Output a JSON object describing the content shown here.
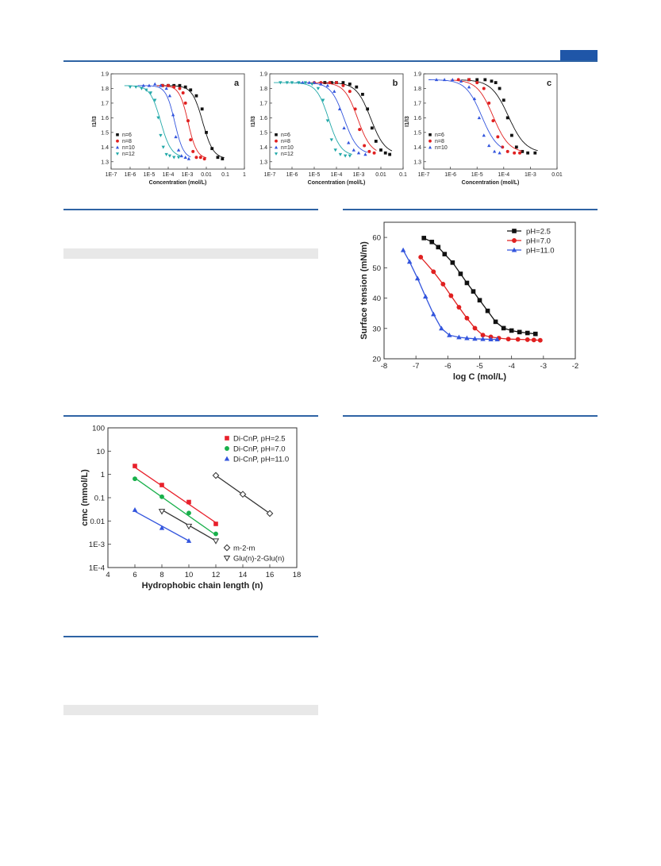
{
  "chart_data": [
    {
      "type": "scatter",
      "panel_label": "a",
      "xscale": "log",
      "xlabel": "Concentration (mol/L)",
      "ylabel": "I1/I3",
      "xlim": [
        1e-07,
        1
      ],
      "ylim": [
        1.25,
        1.9
      ],
      "xticks": [
        "1E-7",
        "1E-6",
        "1E-5",
        "1E-4",
        "1E-3",
        "0.01",
        "0.1",
        "1"
      ],
      "yticks": [
        "1.3",
        "1.4",
        "1.5",
        "1.6",
        "1.7",
        "1.8",
        "1.9"
      ],
      "legend_position": "bottom-left",
      "series": [
        {
          "name": "n=6",
          "color": "#111111",
          "marker": "square",
          "top": 1.82,
          "bottom": 1.32,
          "mid": 0.0065,
          "width": 0.12,
          "x": [
            5e-05,
            0.0001,
            0.0002,
            0.0004,
            0.0008,
            0.0015,
            0.003,
            0.006,
            0.01,
            0.02,
            0.04,
            0.07
          ],
          "y": [
            1.82,
            1.82,
            1.82,
            1.82,
            1.81,
            1.79,
            1.75,
            1.66,
            1.5,
            1.39,
            1.33,
            1.32
          ]
        },
        {
          "name": "n=8",
          "color": "#e02020",
          "marker": "circle",
          "top": 1.82,
          "bottom": 1.32,
          "mid": 0.0011,
          "width": 0.1,
          "x": [
            5e-05,
            0.0001,
            0.0002,
            0.0004,
            0.0006,
            0.0008,
            0.0011,
            0.0015,
            0.002,
            0.003,
            0.005,
            0.008
          ],
          "y": [
            1.82,
            1.82,
            1.81,
            1.8,
            1.77,
            1.7,
            1.58,
            1.45,
            1.37,
            1.33,
            1.33,
            1.32
          ]
        },
        {
          "name": "n=10",
          "color": "#3355dd",
          "marker": "triangle-up",
          "top": 1.82,
          "bottom": 1.32,
          "mid": 0.00022,
          "width": 0.1,
          "x": [
            5e-06,
            1e-05,
            2e-05,
            4e-05,
            8e-05,
            0.00012,
            0.00018,
            0.00025,
            0.00035,
            0.0005,
            0.0008,
            0.0012
          ],
          "y": [
            1.82,
            1.82,
            1.83,
            1.82,
            1.8,
            1.75,
            1.62,
            1.47,
            1.38,
            1.34,
            1.33,
            1.32
          ]
        },
        {
          "name": "n=12",
          "color": "#21a8a8",
          "marker": "triangle-down",
          "top": 1.82,
          "bottom": 1.33,
          "mid": 4e-05,
          "width": 0.12,
          "x": [
            1e-06,
            2e-06,
            4e-06,
            7e-06,
            1.2e-05,
            2e-05,
            3e-05,
            4e-05,
            5.5e-05,
            8e-05,
            0.00012,
            0.0002,
            0.00035
          ],
          "y": [
            1.81,
            1.81,
            1.8,
            1.79,
            1.77,
            1.72,
            1.6,
            1.48,
            1.4,
            1.35,
            1.34,
            1.33,
            1.33
          ]
        }
      ]
    },
    {
      "type": "scatter",
      "panel_label": "b",
      "xscale": "log",
      "xlabel": "Concentration (mol/L)",
      "ylabel": "I1/I3",
      "xlim": [
        1e-07,
        0.1
      ],
      "ylim": [
        1.25,
        1.9
      ],
      "xticks": [
        "1E-7",
        "1E-6",
        "1E-5",
        "1E-4",
        "1E-3",
        "0.01",
        "0.1"
      ],
      "yticks": [
        "1.3",
        "1.4",
        "1.5",
        "1.6",
        "1.7",
        "1.8",
        "1.9"
      ],
      "legend_position": "bottom-left",
      "series": [
        {
          "name": "n=6",
          "color": "#111111",
          "marker": "square",
          "top": 1.84,
          "bottom": 1.35,
          "mid": 0.0035,
          "width": 0.14,
          "x": [
            3e-05,
            6e-05,
            0.0001,
            0.0002,
            0.0004,
            0.0008,
            0.0015,
            0.0025,
            0.004,
            0.006,
            0.01,
            0.016,
            0.025
          ],
          "y": [
            1.84,
            1.84,
            1.84,
            1.84,
            1.83,
            1.81,
            1.76,
            1.66,
            1.53,
            1.44,
            1.38,
            1.36,
            1.35
          ]
        },
        {
          "name": "n=8",
          "color": "#e02020",
          "marker": "circle",
          "top": 1.84,
          "bottom": 1.35,
          "mid": 0.0009,
          "width": 0.13,
          "x": [
            1e-05,
            2e-05,
            5e-05,
            0.0001,
            0.0002,
            0.0004,
            0.0007,
            0.0011,
            0.0018,
            0.003,
            0.005
          ],
          "y": [
            1.84,
            1.84,
            1.84,
            1.84,
            1.82,
            1.78,
            1.66,
            1.52,
            1.41,
            1.37,
            1.36
          ]
        },
        {
          "name": "n=10",
          "color": "#3355dd",
          "marker": "triangle-up",
          "top": 1.84,
          "bottom": 1.35,
          "mid": 0.00022,
          "width": 0.13,
          "x": [
            3e-06,
            6e-06,
            1e-05,
            2e-05,
            4e-05,
            8e-05,
            0.00014,
            0.00022,
            0.00035,
            0.0006,
            0.001,
            0.002
          ],
          "y": [
            1.84,
            1.84,
            1.84,
            1.83,
            1.82,
            1.78,
            1.66,
            1.53,
            1.43,
            1.38,
            1.36,
            1.35
          ]
        },
        {
          "name": "n=12",
          "color": "#21a8a8",
          "marker": "triangle-down",
          "top": 1.84,
          "bottom": 1.34,
          "mid": 4.5e-05,
          "width": 0.12,
          "x": [
            3e-07,
            6e-07,
            1e-06,
            2e-06,
            4e-06,
            8e-06,
            1.5e-05,
            2.5e-05,
            4e-05,
            6e-05,
            9e-05,
            0.00015,
            0.00025,
            0.0004
          ],
          "y": [
            1.84,
            1.84,
            1.84,
            1.84,
            1.84,
            1.83,
            1.8,
            1.72,
            1.58,
            1.45,
            1.38,
            1.35,
            1.34,
            1.34
          ]
        }
      ]
    },
    {
      "type": "scatter",
      "panel_label": "c",
      "xscale": "log",
      "xlabel": "Concentration (mol/L)",
      "ylabel": "I1/I3",
      "xlim": [
        1e-07,
        0.01
      ],
      "ylim": [
        1.25,
        1.9
      ],
      "xticks": [
        "1E-7",
        "1E-6",
        "1E-5",
        "1E-4",
        "1E-3",
        "0.01"
      ],
      "yticks": [
        "1.3",
        "1.4",
        "1.5",
        "1.6",
        "1.7",
        "1.8",
        "1.9"
      ],
      "legend_position": "bottom-left",
      "series": [
        {
          "name": "n=6",
          "color": "#111111",
          "marker": "square",
          "top": 1.86,
          "bottom": 1.36,
          "mid": 0.00015,
          "width": 0.14,
          "x": [
            5e-06,
            1e-05,
            2e-05,
            3.5e-05,
            5e-05,
            7e-05,
            0.0001,
            0.00014,
            0.0002,
            0.0003,
            0.0005,
            0.0008,
            0.0015
          ],
          "y": [
            1.86,
            1.86,
            1.86,
            1.85,
            1.84,
            1.8,
            1.72,
            1.6,
            1.48,
            1.4,
            1.37,
            1.36,
            1.36
          ]
        },
        {
          "name": "n=8",
          "color": "#e02020",
          "marker": "circle",
          "top": 1.86,
          "bottom": 1.36,
          "mid": 4e-05,
          "width": 0.13,
          "x": [
            2e-06,
            5e-06,
            1e-05,
            1.8e-05,
            2.8e-05,
            4e-05,
            6e-05,
            9e-05,
            0.00014,
            0.00025,
            0.0004
          ],
          "y": [
            1.86,
            1.86,
            1.84,
            1.8,
            1.7,
            1.58,
            1.47,
            1.4,
            1.37,
            1.36,
            1.36
          ]
        },
        {
          "name": "n=10",
          "color": "#3355dd",
          "marker": "triangle-up",
          "top": 1.86,
          "bottom": 1.36,
          "mid": 1.5e-05,
          "width": 0.13,
          "x": [
            3e-07,
            6e-07,
            1.2e-06,
            2.5e-06,
            5e-06,
            8e-06,
            1.2e-05,
            1.8e-05,
            2.8e-05,
            4.5e-05,
            7e-05
          ],
          "y": [
            1.86,
            1.86,
            1.86,
            1.85,
            1.81,
            1.73,
            1.6,
            1.48,
            1.41,
            1.37,
            1.36
          ]
        }
      ]
    },
    {
      "type": "line",
      "xlabel": "log C (mol/L)",
      "ylabel": "Surface tension (mN/m)",
      "xlim": [
        -8,
        -2
      ],
      "ylim": [
        20,
        65
      ],
      "xticks": [
        "-8",
        "-7",
        "-6",
        "-5",
        "-4",
        "-3",
        "-2"
      ],
      "yticks": [
        "20",
        "30",
        "40",
        "50",
        "60"
      ],
      "legend_position": "top-right",
      "series": [
        {
          "name": "pH=2.5",
          "color": "#111111",
          "marker": "square",
          "x": [
            -6.75,
            -6.5,
            -6.3,
            -6.1,
            -5.85,
            -5.6,
            -5.4,
            -5.2,
            -5.0,
            -4.75,
            -4.5,
            -4.25,
            -4.0,
            -3.75,
            -3.5,
            -3.25
          ],
          "y": [
            59.8,
            58.5,
            56.8,
            54.5,
            51.7,
            48.0,
            45.0,
            42.2,
            39.3,
            35.8,
            32.2,
            30.1,
            29.3,
            28.8,
            28.5,
            28.2
          ]
        },
        {
          "name": "pH=7.0",
          "color": "#e02020",
          "marker": "circle",
          "x": [
            -6.85,
            -6.45,
            -6.15,
            -5.9,
            -5.65,
            -5.4,
            -5.15,
            -4.9,
            -4.65,
            -4.4,
            -4.1,
            -3.8,
            -3.5,
            -3.3,
            -3.1
          ],
          "y": [
            53.5,
            48.7,
            44.6,
            40.8,
            37.0,
            33.4,
            30.1,
            27.8,
            27.2,
            26.8,
            26.5,
            26.4,
            26.3,
            26.2,
            26.1
          ]
        },
        {
          "name": "pH=11.0",
          "color": "#3355dd",
          "marker": "triangle-up",
          "x": [
            -7.4,
            -7.2,
            -6.95,
            -6.7,
            -6.45,
            -6.2,
            -5.95,
            -5.65,
            -5.4,
            -5.15,
            -4.9,
            -4.65,
            -4.45
          ],
          "y": [
            55.8,
            52.0,
            46.5,
            40.5,
            34.7,
            30.0,
            27.8,
            27.1,
            26.8,
            26.6,
            26.5,
            26.4,
            26.4
          ]
        }
      ]
    },
    {
      "type": "scatter",
      "yscale": "log",
      "xlabel": "Hydrophobic chain length (n)",
      "ylabel": "cmc (mmol/L)",
      "xlim": [
        4,
        18
      ],
      "ylim": [
        0.0001,
        100
      ],
      "xticks": [
        "4",
        "6",
        "8",
        "10",
        "12",
        "14",
        "16",
        "18"
      ],
      "yticks": [
        "1E-4",
        "1E-3",
        "0.01",
        "0.1",
        "1",
        "10",
        "100"
      ],
      "legend_position": "top-right",
      "series": [
        {
          "name": "Di-CnP, pH=2.5",
          "color": "#e8202b",
          "marker": "square",
          "line_color": "#e8202b",
          "x": [
            6,
            8,
            10,
            12
          ],
          "y": [
            2.3,
            0.35,
            0.065,
            0.0075
          ],
          "fit": [
            [
              6,
              2.0
            ],
            [
              12,
              0.0085
            ]
          ]
        },
        {
          "name": "Di-CnP, pH=7.0",
          "color": "#19b04b",
          "marker": "circle",
          "line_color": "#19b04b",
          "x": [
            6,
            8,
            10,
            12
          ],
          "y": [
            0.65,
            0.11,
            0.022,
            0.0028
          ],
          "fit": [
            [
              6,
              0.7
            ],
            [
              12,
              0.0025
            ]
          ]
        },
        {
          "name": "Di-CnP, pH=11.0",
          "color": "#3355dd",
          "marker": "triangle-up",
          "line_color": "#3355dd",
          "x": [
            6,
            8,
            10
          ],
          "y": [
            0.03,
            0.005,
            0.0014
          ],
          "fit": [
            [
              6,
              0.026
            ],
            [
              10,
              0.0014
            ]
          ]
        },
        {
          "name": "m-2-m",
          "color": "#333333",
          "marker": "diamond-open",
          "line_color": "#333333",
          "x": [
            12,
            14,
            16
          ],
          "y": [
            0.9,
            0.14,
            0.021
          ],
          "fit": [
            [
              12,
              0.9
            ],
            [
              16,
              0.021
            ]
          ]
        },
        {
          "name": "Glu(n)-2-Glu(n)",
          "color": "#333333",
          "marker": "triangle-down-open",
          "line_color": "#333333",
          "x": [
            8,
            10,
            12
          ],
          "y": [
            0.026,
            0.006,
            0.0014
          ],
          "fit": [
            [
              8,
              0.03
            ],
            [
              12,
              0.0014
            ]
          ]
        }
      ],
      "legend_groups": [
        {
          "entries": [
            "Di-CnP, pH=2.5",
            "Di-CnP, pH=7.0",
            "Di-CnP, pH=11.0"
          ],
          "position": "top-right"
        },
        {
          "entries": [
            "m-2-m",
            "Glu(n)-2-Glu(n)"
          ],
          "position": "lower-right"
        }
      ]
    }
  ],
  "colors": {
    "accent": "#1f56a8",
    "rule": "#2e63a4",
    "shade": "#e8e8e8"
  }
}
